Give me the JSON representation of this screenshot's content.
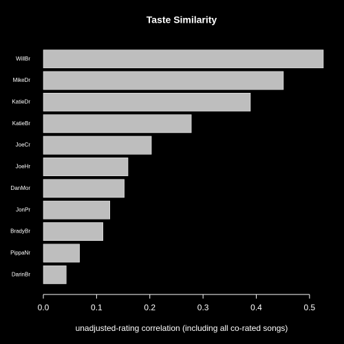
{
  "chart_data": {
    "type": "barh",
    "title": "Taste Similarity",
    "x_label": "unadjusted-rating correlation (including all co-rated songs)",
    "categories": [
      "WillBr",
      "MikeDr",
      "KatieDr",
      "KatieBr",
      "JoeCr",
      "JoeHr",
      "DanMor",
      "JonPr",
      "BradyBr",
      "PippaNr",
      "DarinBr"
    ],
    "values": [
      0.526,
      0.451,
      0.389,
      0.278,
      0.203,
      0.159,
      0.152,
      0.125,
      0.112,
      0.068,
      0.043
    ],
    "color": "#bebebe",
    "xlim": [
      0,
      0.526
    ],
    "xticks": [
      {
        "value": 0,
        "label": "0.0"
      },
      0.1,
      0.2,
      0.3,
      0.4,
      0.5
    ]
  }
}
